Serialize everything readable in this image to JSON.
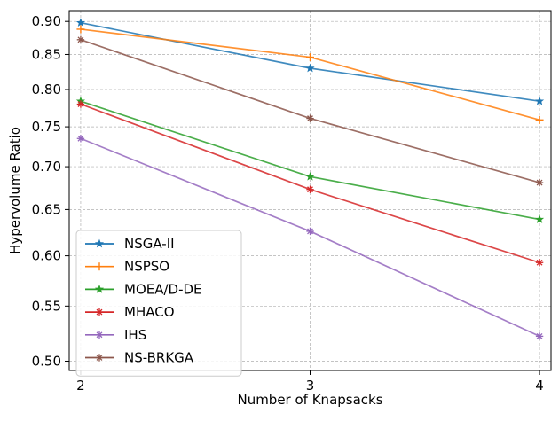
{
  "chart_data": {
    "type": "line",
    "title": "",
    "xlabel": "Number of Knapsacks",
    "ylabel": "Hypervolume Ratio",
    "x": [
      2,
      3,
      4
    ],
    "x_tick_labels": [
      "2",
      "3",
      "4"
    ],
    "y_ticks": [
      0.5,
      0.55,
      0.6,
      0.65,
      0.7,
      0.75,
      0.8,
      0.85,
      0.9
    ],
    "y_tick_labels": [
      "0.50",
      "0.55",
      "0.60",
      "0.65",
      "0.70",
      "0.75",
      "0.80",
      "0.85",
      "0.90"
    ],
    "y_scale": "log",
    "xlim": [
      1.95,
      4.05
    ],
    "ylim": [
      0.492,
      0.917
    ],
    "grid": true,
    "legend_position": "lower-left",
    "series": [
      {
        "name": "NSGA-II",
        "values": [
          0.898,
          0.83,
          0.784
        ],
        "color": "#1f77b4",
        "marker": "star"
      },
      {
        "name": "NSPSO",
        "values": [
          0.888,
          0.846,
          0.759
        ],
        "color": "#ff7f0e",
        "marker": "plus"
      },
      {
        "name": "MOEA/D-DE",
        "values": [
          0.784,
          0.688,
          0.639
        ],
        "color": "#2ca02c",
        "marker": "star"
      },
      {
        "name": "MHACO",
        "values": [
          0.78,
          0.673,
          0.593
        ],
        "color": "#d62728",
        "marker": "asterisk"
      },
      {
        "name": "IHS",
        "values": [
          0.735,
          0.626,
          0.522
        ],
        "color": "#9467bd",
        "marker": "asterisk"
      },
      {
        "name": "NS-BRKGA",
        "values": [
          0.872,
          0.761,
          0.681
        ],
        "color": "#8c564b",
        "marker": "asterisk"
      }
    ]
  }
}
